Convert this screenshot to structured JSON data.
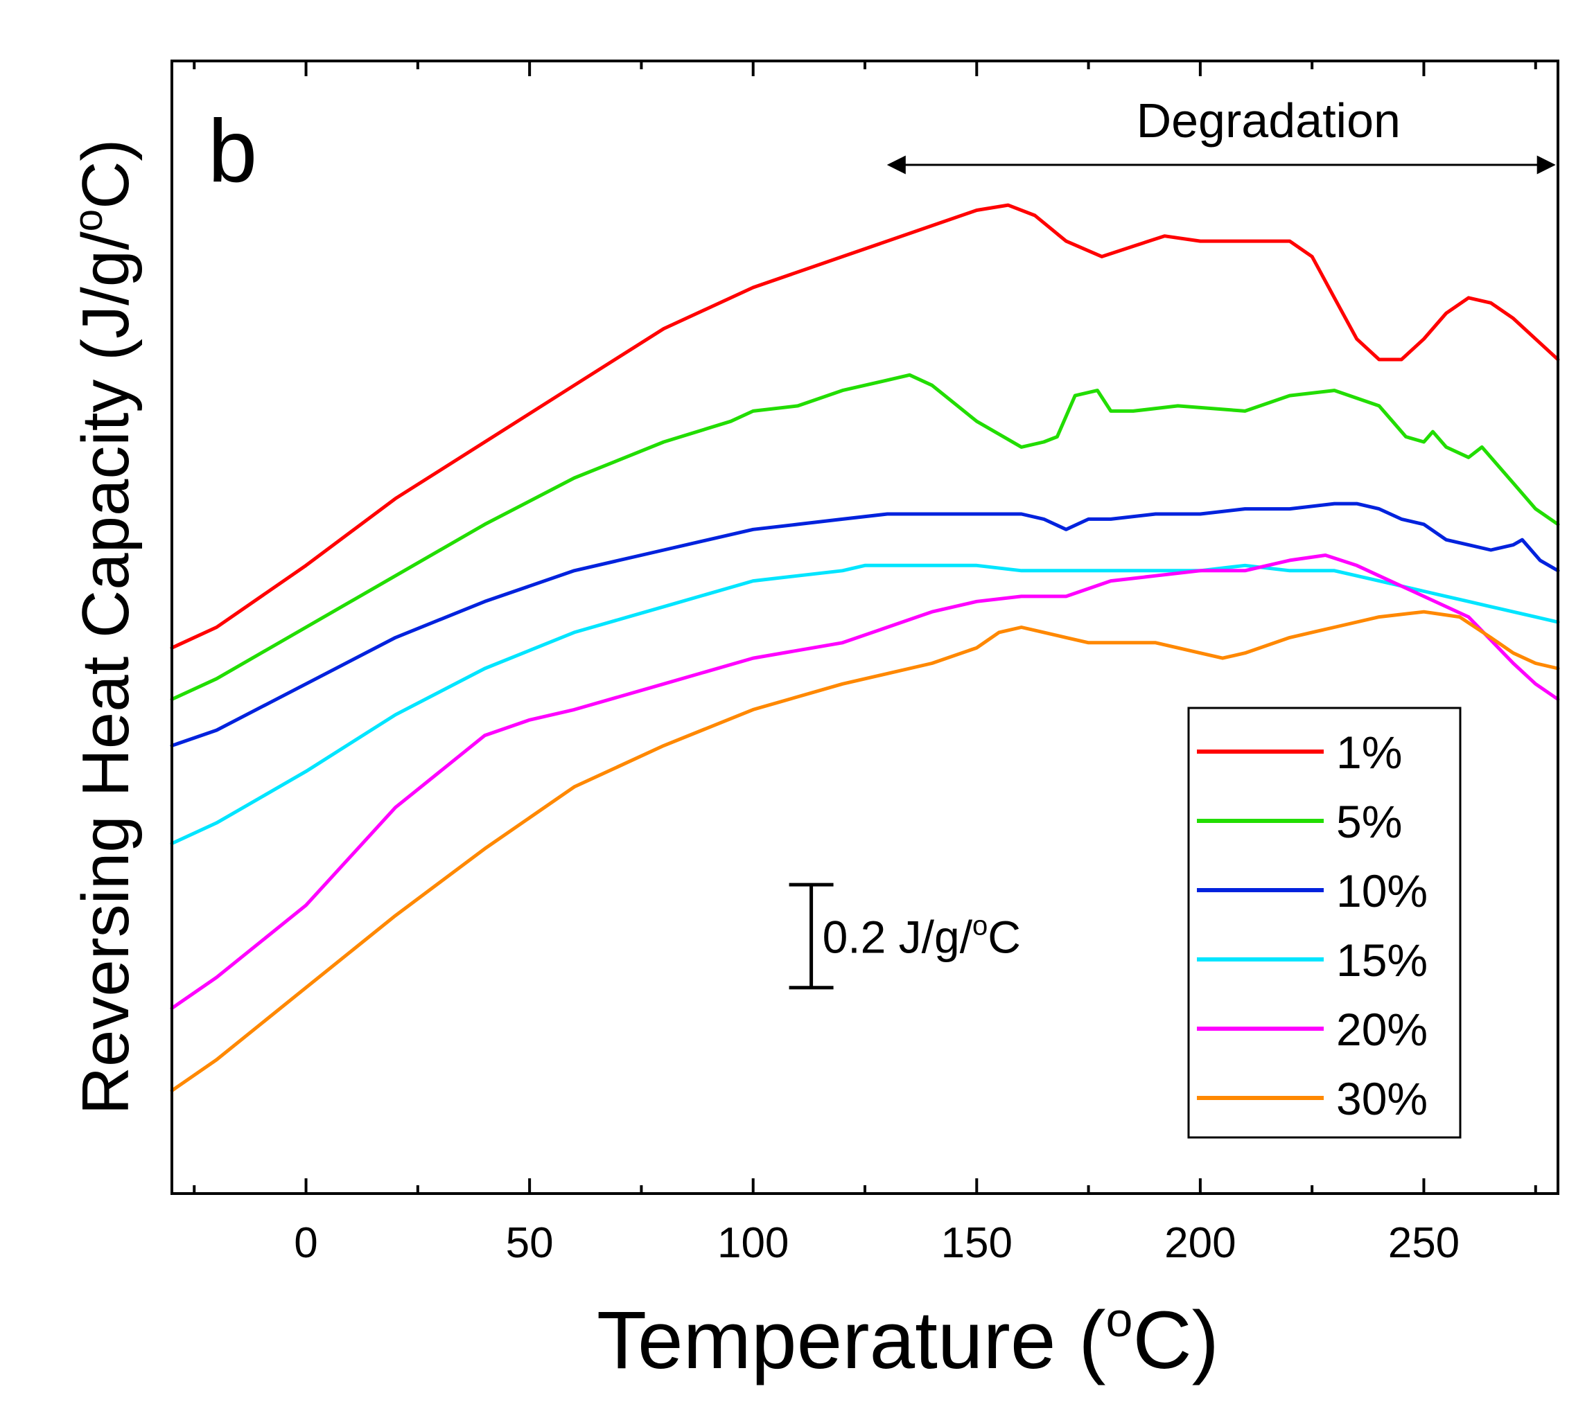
{
  "chart_data": {
    "type": "line",
    "panel_label": "b",
    "xlabel": "Temperature (",
    "xlabel_unit": "C)",
    "xlabel_sup": "o",
    "ylabel": "Reversing Heat Capacity (J/g/",
    "ylabel_unit": "C)",
    "ylabel_sup": "o",
    "xlim": [
      -30,
      280
    ],
    "ylim": [
      0,
      2.2
    ],
    "x_ticks": [
      0,
      50,
      100,
      150,
      200,
      250
    ],
    "x_tick_labels": [
      "0",
      "50",
      "100",
      "150",
      "200",
      "250"
    ],
    "grid": false,
    "legend_position": "lower-right",
    "annotations": {
      "degradation_label": "Degradation",
      "degradation_range": [
        135,
        280
      ],
      "scale_bar_label": "0.2 J/g/",
      "scale_bar_unit": "C",
      "scale_bar_sup": "o",
      "scale_bar_size": 0.2,
      "scale_bar_x": 113,
      "scale_bar_y": 0.4
    },
    "series": [
      {
        "name": "1%",
        "color": "#ff0000",
        "x": [
          -30,
          -20,
          0,
          20,
          40,
          60,
          80,
          100,
          120,
          140,
          150,
          157,
          163,
          170,
          178,
          185,
          192,
          200,
          210,
          220,
          225,
          230,
          235,
          240,
          245,
          250,
          255,
          260,
          265,
          270,
          275,
          280
        ],
        "y": [
          1.06,
          1.1,
          1.22,
          1.35,
          1.46,
          1.57,
          1.68,
          1.76,
          1.82,
          1.88,
          1.91,
          1.92,
          1.9,
          1.85,
          1.82,
          1.84,
          1.86,
          1.85,
          1.85,
          1.85,
          1.82,
          1.74,
          1.66,
          1.62,
          1.62,
          1.66,
          1.71,
          1.74,
          1.73,
          1.7,
          1.66,
          1.62
        ]
      },
      {
        "name": "5%",
        "color": "#22dd00",
        "x": [
          -30,
          -20,
          0,
          20,
          40,
          60,
          80,
          95,
          100,
          110,
          120,
          130,
          135,
          140,
          150,
          160,
          165,
          168,
          172,
          177,
          180,
          185,
          195,
          210,
          220,
          230,
          240,
          243,
          246,
          250,
          252,
          255,
          260,
          263,
          270,
          275,
          280
        ],
        "y": [
          0.96,
          1.0,
          1.1,
          1.2,
          1.3,
          1.39,
          1.46,
          1.5,
          1.52,
          1.53,
          1.56,
          1.58,
          1.59,
          1.57,
          1.5,
          1.45,
          1.46,
          1.47,
          1.55,
          1.56,
          1.52,
          1.52,
          1.53,
          1.52,
          1.55,
          1.56,
          1.53,
          1.5,
          1.47,
          1.46,
          1.48,
          1.45,
          1.43,
          1.45,
          1.38,
          1.33,
          1.3
        ]
      },
      {
        "name": "10%",
        "color": "#0022dd",
        "x": [
          -30,
          -20,
          0,
          20,
          40,
          60,
          80,
          100,
          110,
          120,
          130,
          140,
          150,
          160,
          165,
          170,
          175,
          180,
          190,
          200,
          210,
          220,
          230,
          235,
          240,
          245,
          250,
          255,
          260,
          265,
          270,
          272,
          276,
          280
        ],
        "y": [
          0.87,
          0.9,
          0.99,
          1.08,
          1.15,
          1.21,
          1.25,
          1.29,
          1.3,
          1.31,
          1.32,
          1.32,
          1.32,
          1.32,
          1.31,
          1.29,
          1.31,
          1.31,
          1.32,
          1.32,
          1.33,
          1.33,
          1.34,
          1.34,
          1.33,
          1.31,
          1.3,
          1.27,
          1.26,
          1.25,
          1.26,
          1.27,
          1.23,
          1.21
        ]
      },
      {
        "name": "15%",
        "color": "#00e5ff",
        "x": [
          -30,
          -20,
          0,
          20,
          40,
          60,
          80,
          100,
          110,
          120,
          125,
          130,
          140,
          150,
          160,
          170,
          180,
          190,
          200,
          210,
          220,
          230,
          240,
          245,
          250,
          255,
          260,
          265,
          270,
          275,
          280
        ],
        "y": [
          0.68,
          0.72,
          0.82,
          0.93,
          1.02,
          1.09,
          1.14,
          1.19,
          1.2,
          1.21,
          1.22,
          1.22,
          1.22,
          1.22,
          1.21,
          1.21,
          1.21,
          1.21,
          1.21,
          1.22,
          1.21,
          1.21,
          1.19,
          1.18,
          1.17,
          1.16,
          1.15,
          1.14,
          1.13,
          1.12,
          1.11
        ]
      },
      {
        "name": "20%",
        "color": "#ff00ff",
        "x": [
          -30,
          -20,
          0,
          20,
          40,
          50,
          60,
          80,
          100,
          120,
          130,
          140,
          150,
          160,
          170,
          180,
          190,
          200,
          210,
          220,
          228,
          235,
          240,
          250,
          260,
          270,
          275,
          280
        ],
        "y": [
          0.36,
          0.42,
          0.56,
          0.75,
          0.89,
          0.92,
          0.94,
          0.99,
          1.04,
          1.07,
          1.1,
          1.13,
          1.15,
          1.16,
          1.16,
          1.19,
          1.2,
          1.21,
          1.21,
          1.23,
          1.24,
          1.22,
          1.2,
          1.16,
          1.12,
          1.03,
          0.99,
          0.96
        ]
      },
      {
        "name": "30%",
        "color": "#ff8800",
        "x": [
          -30,
          -20,
          0,
          20,
          40,
          60,
          80,
          100,
          120,
          140,
          150,
          155,
          160,
          165,
          170,
          175,
          180,
          190,
          200,
          205,
          210,
          220,
          230,
          240,
          250,
          258,
          265,
          270,
          275,
          280
        ],
        "y": [
          0.2,
          0.26,
          0.4,
          0.54,
          0.67,
          0.79,
          0.87,
          0.94,
          0.99,
          1.03,
          1.06,
          1.09,
          1.1,
          1.09,
          1.08,
          1.07,
          1.07,
          1.07,
          1.05,
          1.04,
          1.05,
          1.08,
          1.1,
          1.12,
          1.13,
          1.12,
          1.08,
          1.05,
          1.03,
          1.02
        ]
      }
    ]
  }
}
